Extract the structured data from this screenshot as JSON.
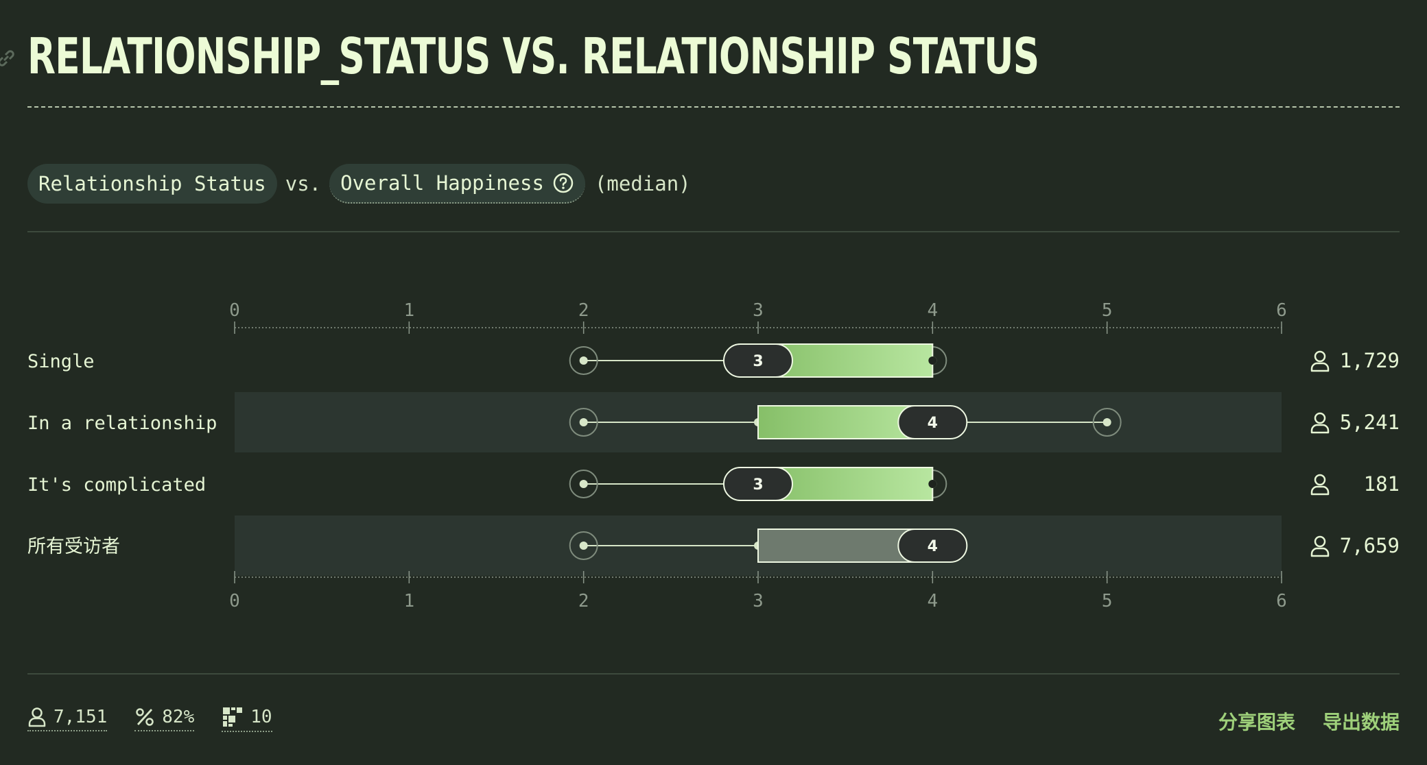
{
  "header": {
    "title": "RELATIONSHIP_STATUS VS. RELATIONSHIP STATUS"
  },
  "subtitle": {
    "group_by": "Relationship Status",
    "vs": "vs.",
    "question": "Overall Happiness",
    "aggregation": "(median)"
  },
  "chart_data": {
    "type": "boxplot",
    "x_ticks": [
      "0",
      "1",
      "2",
      "3",
      "4",
      "5",
      "6"
    ],
    "xlim": [
      0,
      6
    ],
    "rows": [
      {
        "label": "Single",
        "min": 2,
        "q1": 3,
        "median": 3,
        "q3": 4,
        "max": 4,
        "median_label": "3",
        "count": "1,729",
        "color": "green",
        "shaded": false
      },
      {
        "label": "In a relationship",
        "min": 2,
        "q1": 3,
        "median": 4,
        "q3": 4,
        "max": 5,
        "median_label": "4",
        "count": "5,241",
        "color": "green",
        "shaded": true
      },
      {
        "label": "It's complicated",
        "min": 2,
        "q1": 3,
        "median": 3,
        "q3": 4,
        "max": 4,
        "median_label": "3",
        "count": "181",
        "color": "green",
        "shaded": false
      },
      {
        "label": "所有受访者",
        "min": 2,
        "q1": 3,
        "median": 4,
        "q3": 4,
        "max": 4,
        "median_label": "4",
        "count": "7,659",
        "color": "gray",
        "shaded": true
      }
    ]
  },
  "footer": {
    "respondents": "7,151",
    "percent": "82%",
    "questions": "10",
    "share_label": "分享图表",
    "export_label": "导出数据"
  },
  "colors": {
    "background": "#222a22",
    "text": "#e6f5d4",
    "accent": "#9ed07a",
    "bar_green_start": "#86bf68",
    "bar_green_end": "#b8e6a0",
    "bar_gray": "#6e7a6e"
  }
}
